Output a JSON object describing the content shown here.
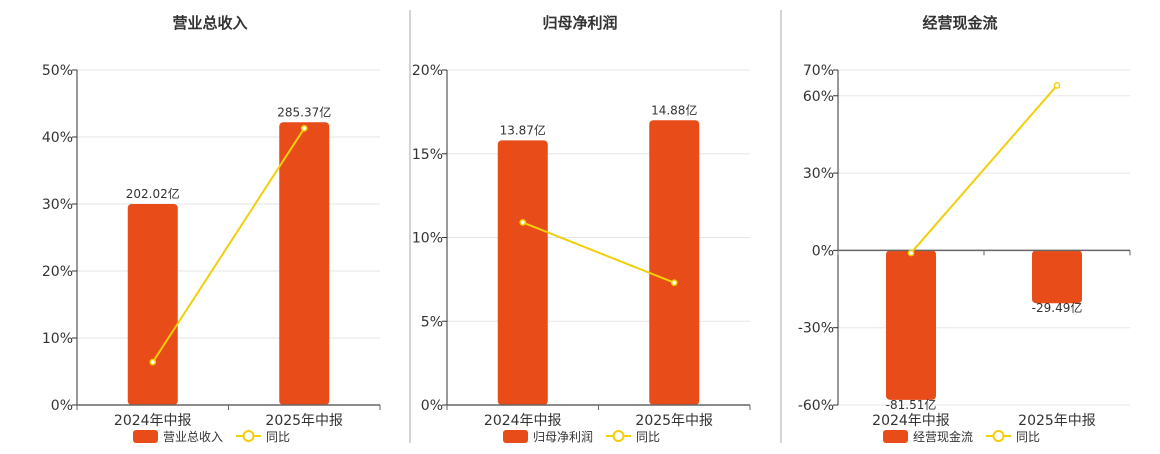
{
  "colors": {
    "bar": "#e84c19",
    "line": "#f2cf0a",
    "grid": "#e5e5e5",
    "axis": "#333333",
    "separator": "#aaaaaa"
  },
  "chart_data": [
    {
      "type": "bar",
      "title": "营业总收入",
      "categories": [
        "2024年中报",
        "2025年中报"
      ],
      "series": [
        {
          "name": "营业总收入",
          "type": "bar",
          "values": [
            30,
            42.2
          ],
          "labels": [
            "202.02亿",
            "285.37亿"
          ]
        },
        {
          "name": "同比",
          "type": "line",
          "values": [
            6.4,
            41.3
          ]
        }
      ],
      "ylim": [
        0,
        50
      ],
      "yticks": [
        "0%",
        "10%",
        "20%",
        "30%",
        "40%",
        "50%"
      ],
      "ytick_values": [
        0,
        10,
        20,
        30,
        40,
        50
      ],
      "grid": true,
      "legend": "bottom"
    },
    {
      "type": "bar",
      "title": "归母净利润",
      "categories": [
        "2024年中报",
        "2025年中报"
      ],
      "series": [
        {
          "name": "归母净利润",
          "type": "bar",
          "values": [
            15.8,
            17.0
          ],
          "labels": [
            "13.87亿",
            "14.88亿"
          ]
        },
        {
          "name": "同比",
          "type": "line",
          "values": [
            10.9,
            7.3
          ]
        }
      ],
      "ylim": [
        0,
        20
      ],
      "yticks": [
        "0%",
        "5%",
        "10%",
        "15%",
        "20%"
      ],
      "ytick_values": [
        0,
        5,
        10,
        15,
        20
      ],
      "grid": true,
      "legend": "bottom"
    },
    {
      "type": "bar",
      "title": "经营现金流",
      "categories": [
        "2024年中报",
        "2025年中报"
      ],
      "series": [
        {
          "name": "经营现金流",
          "type": "bar",
          "values": [
            -58,
            -20.5
          ],
          "labels": [
            "-81.51亿",
            "-29.49亿"
          ]
        },
        {
          "name": "同比",
          "type": "line",
          "values": [
            -1,
            64
          ]
        }
      ],
      "ylim": [
        -60,
        70
      ],
      "yticks": [
        "-60%",
        "-30%",
        "0%",
        "30%",
        "60%",
        "70%"
      ],
      "ytick_values": [
        -60,
        -30,
        0,
        30,
        60,
        70
      ],
      "grid": true,
      "legend": "bottom"
    }
  ]
}
